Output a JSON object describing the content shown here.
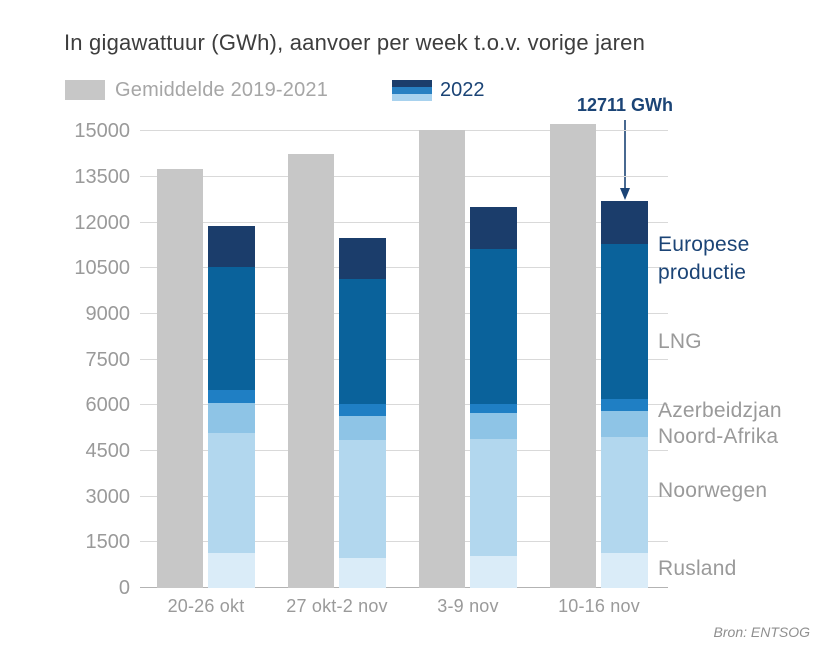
{
  "title": "In gigawattuur (GWh), aanvoer per week t.o.v. vorige jaren",
  "legend": {
    "average_label": "Gemiddelde 2019-2021",
    "year_label": "2022"
  },
  "annotation": {
    "value_label": "12711 GWh"
  },
  "segment_labels": {
    "europese_productie": "Europese productie",
    "lng": "LNG",
    "azerbeidzjan": "Azerbeidzjan",
    "noord_afrika": "Noord-Afrika",
    "noorwegen": "Noorwegen",
    "rusland": "Rusland"
  },
  "source": "Bron: ENTSOG",
  "colors": {
    "average_bar": "#c7c7c7",
    "europese_productie": "#1b3d6b",
    "lng": "#0a629b",
    "azerbeidzjan": "#1f7fc4",
    "noord_afrika": "#8ec4e6",
    "noorwegen": "#b2d7ee",
    "rusland": "#daecf8",
    "navy_text": "#1b4476",
    "gray_text": "#9a9a9a"
  },
  "chart_data": {
    "type": "bar",
    "title": "In gigawattuur (GWh), aanvoer per week t.o.v. vorige jaren",
    "categories": [
      "20-26 okt",
      "27 okt-2 nov",
      "3-9 nov",
      "10-16 nov"
    ],
    "ylim": [
      0,
      15500
    ],
    "y_ticks": [
      0,
      1500,
      3000,
      4500,
      6000,
      7500,
      9000,
      10500,
      12000,
      13500,
      15000
    ],
    "grid": true,
    "legend_position": "top",
    "annotated_point": {
      "category": "10-16 nov",
      "series": "2022",
      "value": 12711,
      "label": "12711 GWh"
    },
    "series": [
      {
        "name": "Gemiddelde 2019-2021",
        "type": "bar",
        "color": "#c7c7c7",
        "values": [
          13750,
          14250,
          15050,
          15250
        ]
      },
      {
        "name": "2022",
        "type": "stacked-bar",
        "totals": [
          11900,
          11500,
          12500,
          12711
        ],
        "segments": [
          {
            "key": "rusland",
            "name": "Rusland",
            "color": "#daecf8",
            "values": [
              1150,
              1000,
              1050,
              1150
            ]
          },
          {
            "key": "noorwegen",
            "name": "Noorwegen",
            "color": "#b2d7ee",
            "values": [
              3930,
              3850,
              3850,
              3800
            ]
          },
          {
            "key": "noord-afrika",
            "name": "Noord-Afrika",
            "color": "#8ec4e6",
            "values": [
              1000,
              800,
              850,
              850
            ]
          },
          {
            "key": "azerbeidzjan",
            "name": "Azerbeidzjan",
            "color": "#1f7fc4",
            "values": [
              420,
              400,
              300,
              400
            ]
          },
          {
            "key": "lng",
            "name": "LNG",
            "color": "#0a629b",
            "values": [
              4050,
              4100,
              5100,
              5100
            ]
          },
          {
            "key": "europese-productie",
            "name": "Europese productie",
            "color": "#1b3d6b",
            "values": [
              1350,
              1350,
              1350,
              1411
            ]
          }
        ]
      }
    ]
  }
}
